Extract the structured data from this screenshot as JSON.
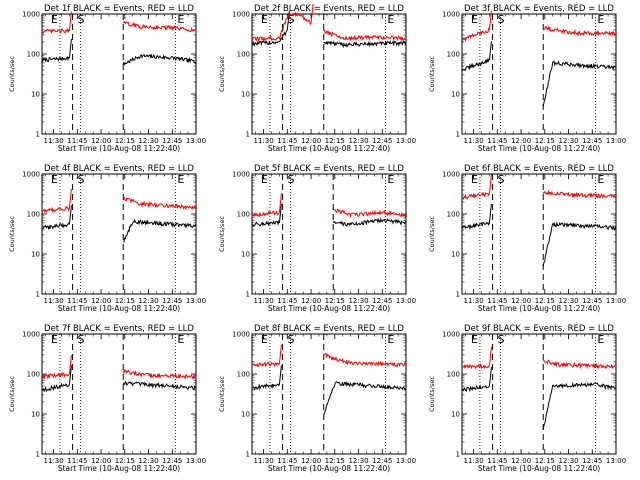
{
  "common": {
    "title_suffix": "BLACK = Events, RED = LLD",
    "xlabel": "Start Time (10-Aug-08 11:22:40)",
    "ylabel": "Counts/sec",
    "xticks": [
      "11:30",
      "11:45",
      "12:00",
      "12:15",
      "12:30",
      "12:45",
      "13:00"
    ],
    "yticks": [
      "1",
      "10",
      "100",
      "1000"
    ],
    "markers": [
      "E",
      "S",
      "E"
    ],
    "colors": {
      "events": "#000000",
      "lld": "#ff0000"
    }
  },
  "chart_data": [
    {
      "type": "line",
      "title": "Det 1f",
      "xlim": [
        "11:22:40",
        "13:00"
      ],
      "ylim": [
        1,
        1000
      ],
      "log_y": true,
      "dotted_lines": [
        "11:34",
        "11:47",
        "12:47"
      ],
      "dashed_lines": [
        "11:42",
        "12:14"
      ],
      "series": [
        {
          "key": "events",
          "pre": [
            {
              "t": "11:22:40",
              "v": 70
            },
            {
              "t": "11:40",
              "v": 80
            }
          ],
          "post": [
            {
              "t": "12:14",
              "v": 55
            },
            {
              "t": "12:25",
              "v": 90
            },
            {
              "t": "12:45",
              "v": 80
            },
            {
              "t": "13:00",
              "v": 65
            }
          ]
        },
        {
          "key": "lld",
          "pre": [
            {
              "t": "11:22:40",
              "v": 370
            },
            {
              "t": "11:40",
              "v": 380
            }
          ],
          "post": [
            {
              "t": "12:14",
              "v": 600
            },
            {
              "t": "12:25",
              "v": 480
            },
            {
              "t": "12:45",
              "v": 450
            },
            {
              "t": "13:00",
              "v": 390
            }
          ]
        }
      ]
    },
    {
      "type": "line",
      "title": "Det 2f",
      "xlim": [
        "11:22:40",
        "13:00"
      ],
      "ylim": [
        1,
        1000
      ],
      "log_y": true,
      "dotted_lines": [
        "11:34",
        "11:47",
        "12:47"
      ],
      "dashed_lines": [
        "11:42",
        "12:08"
      ],
      "series": [
        {
          "key": "events",
          "pre": [
            {
              "t": "11:22:40",
              "v": 180
            },
            {
              "t": "11:40",
              "v": 200
            },
            {
              "t": "11:45",
              "v": 400
            }
          ],
          "post": [
            {
              "t": "12:08",
              "v": 200
            },
            {
              "t": "12:20",
              "v": 170
            },
            {
              "t": "12:40",
              "v": 180
            },
            {
              "t": "13:00",
              "v": 190
            }
          ]
        },
        {
          "key": "lld",
          "pre": [
            {
              "t": "11:22:40",
              "v": 240
            },
            {
              "t": "11:40",
              "v": 250
            },
            {
              "t": "11:45",
              "v": 900
            },
            {
              "t": "11:52",
              "v": 1000
            },
            {
              "t": "12:00",
              "v": 600
            }
          ],
          "post": [
            {
              "t": "12:08",
              "v": 380
            },
            {
              "t": "12:20",
              "v": 250
            },
            {
              "t": "12:40",
              "v": 260
            },
            {
              "t": "13:00",
              "v": 250
            }
          ]
        }
      ]
    },
    {
      "type": "line",
      "title": "Det 3f",
      "xlim": [
        "11:22:40",
        "13:00"
      ],
      "ylim": [
        1,
        1000
      ],
      "log_y": true,
      "dotted_lines": [
        "11:34",
        "11:47",
        "12:47"
      ],
      "dashed_lines": [
        "11:42",
        "12:14"
      ],
      "series": [
        {
          "key": "events",
          "pre": [
            {
              "t": "11:22:40",
              "v": 40
            },
            {
              "t": "11:40",
              "v": 70
            }
          ],
          "post": [
            {
              "t": "12:14",
              "v": 5
            },
            {
              "t": "12:20",
              "v": 60
            },
            {
              "t": "12:45",
              "v": 50
            },
            {
              "t": "13:00",
              "v": 45
            }
          ]
        },
        {
          "key": "lld",
          "pre": [
            {
              "t": "11:22:40",
              "v": 230
            },
            {
              "t": "11:40",
              "v": 400
            }
          ],
          "post": [
            {
              "t": "12:14",
              "v": 450
            },
            {
              "t": "12:30",
              "v": 350
            },
            {
              "t": "13:00",
              "v": 320
            }
          ]
        }
      ]
    },
    {
      "type": "line",
      "title": "Det 4f",
      "xlim": [
        "11:22:40",
        "13:00"
      ],
      "ylim": [
        1,
        1000
      ],
      "log_y": true,
      "dotted_lines": [
        "11:34",
        "11:47",
        "12:47"
      ],
      "dashed_lines": [
        "11:42",
        "12:14"
      ],
      "series": [
        {
          "key": "events",
          "pre": [
            {
              "t": "11:22:40",
              "v": 45
            },
            {
              "t": "11:40",
              "v": 55
            }
          ],
          "post": [
            {
              "t": "12:14",
              "v": 20
            },
            {
              "t": "12:20",
              "v": 65
            },
            {
              "t": "12:45",
              "v": 55
            },
            {
              "t": "13:00",
              "v": 50
            }
          ]
        },
        {
          "key": "lld",
          "pre": [
            {
              "t": "11:22:40",
              "v": 120
            },
            {
              "t": "11:40",
              "v": 140
            }
          ],
          "post": [
            {
              "t": "12:14",
              "v": 250
            },
            {
              "t": "12:25",
              "v": 180
            },
            {
              "t": "12:45",
              "v": 160
            },
            {
              "t": "13:00",
              "v": 140
            }
          ]
        }
      ]
    },
    {
      "type": "line",
      "title": "Det 5f",
      "xlim": [
        "11:22:40",
        "13:00"
      ],
      "ylim": [
        1,
        1000
      ],
      "log_y": true,
      "dotted_lines": [
        "11:34",
        "11:47",
        "12:47"
      ],
      "dashed_lines": [
        "11:42",
        "12:14"
      ],
      "series": [
        {
          "key": "events",
          "pre": [
            {
              "t": "11:22:40",
              "v": 55
            },
            {
              "t": "11:40",
              "v": 60
            }
          ],
          "post": [
            {
              "t": "12:14",
              "v": 60
            },
            {
              "t": "12:25",
              "v": 55
            },
            {
              "t": "12:45",
              "v": 70
            },
            {
              "t": "13:00",
              "v": 60
            }
          ]
        },
        {
          "key": "lld",
          "pre": [
            {
              "t": "11:22:40",
              "v": 95
            },
            {
              "t": "11:40",
              "v": 110
            }
          ],
          "post": [
            {
              "t": "12:14",
              "v": 130
            },
            {
              "t": "12:25",
              "v": 95
            },
            {
              "t": "12:45",
              "v": 110
            },
            {
              "t": "13:00",
              "v": 90
            }
          ]
        }
      ]
    },
    {
      "type": "line",
      "title": "Det 6f",
      "xlim": [
        "11:22:40",
        "13:00"
      ],
      "ylim": [
        1,
        1000
      ],
      "log_y": true,
      "dotted_lines": [
        "11:34",
        "11:47",
        "12:47"
      ],
      "dashed_lines": [
        "11:42",
        "12:14"
      ],
      "series": [
        {
          "key": "events",
          "pre": [
            {
              "t": "11:22:40",
              "v": 45
            },
            {
              "t": "11:40",
              "v": 60
            }
          ],
          "post": [
            {
              "t": "12:14",
              "v": 5
            },
            {
              "t": "12:20",
              "v": 55
            },
            {
              "t": "12:45",
              "v": 50
            },
            {
              "t": "13:00",
              "v": 45
            }
          ]
        },
        {
          "key": "lld",
          "pre": [
            {
              "t": "11:22:40",
              "v": 260
            },
            {
              "t": "11:40",
              "v": 320
            }
          ],
          "post": [
            {
              "t": "12:14",
              "v": 350
            },
            {
              "t": "12:30",
              "v": 300
            },
            {
              "t": "13:00",
              "v": 280
            }
          ]
        }
      ]
    },
    {
      "type": "line",
      "title": "Det 7f",
      "xlim": [
        "11:22:40",
        "13:00"
      ],
      "ylim": [
        1,
        1000
      ],
      "log_y": true,
      "dotted_lines": [
        "11:34",
        "11:47",
        "12:47"
      ],
      "dashed_lines": [
        "11:42",
        "12:14"
      ],
      "series": [
        {
          "key": "events",
          "pre": [
            {
              "t": "11:22:40",
              "v": 40
            },
            {
              "t": "11:40",
              "v": 55
            }
          ],
          "post": [
            {
              "t": "12:14",
              "v": 60
            },
            {
              "t": "12:25",
              "v": 55
            },
            {
              "t": "12:45",
              "v": 50
            },
            {
              "t": "13:00",
              "v": 45
            }
          ]
        },
        {
          "key": "lld",
          "pre": [
            {
              "t": "11:22:40",
              "v": 85
            },
            {
              "t": "11:40",
              "v": 100
            }
          ],
          "post": [
            {
              "t": "12:14",
              "v": 120
            },
            {
              "t": "12:25",
              "v": 95
            },
            {
              "t": "12:45",
              "v": 90
            },
            {
              "t": "13:00",
              "v": 85
            }
          ]
        }
      ]
    },
    {
      "type": "line",
      "title": "Det 8f",
      "xlim": [
        "11:22:40",
        "13:00"
      ],
      "ylim": [
        1,
        1000
      ],
      "log_y": true,
      "dotted_lines": [
        "11:34",
        "11:47",
        "12:47"
      ],
      "dashed_lines": [
        "11:42",
        "12:08"
      ],
      "series": [
        {
          "key": "events",
          "pre": [
            {
              "t": "11:22:40",
              "v": 45
            },
            {
              "t": "11:40",
              "v": 55
            }
          ],
          "post": [
            {
              "t": "12:08",
              "v": 10
            },
            {
              "t": "12:15",
              "v": 60
            },
            {
              "t": "12:40",
              "v": 50
            },
            {
              "t": "13:00",
              "v": 45
            }
          ]
        },
        {
          "key": "lld",
          "pre": [
            {
              "t": "11:22:40",
              "v": 170
            },
            {
              "t": "11:40",
              "v": 180
            }
          ],
          "post": [
            {
              "t": "12:08",
              "v": 300
            },
            {
              "t": "12:25",
              "v": 190
            },
            {
              "t": "12:45",
              "v": 180
            },
            {
              "t": "13:00",
              "v": 170
            }
          ]
        }
      ]
    },
    {
      "type": "line",
      "title": "Det 9f",
      "xlim": [
        "11:22:40",
        "13:00"
      ],
      "ylim": [
        1,
        1000
      ],
      "log_y": true,
      "dotted_lines": [
        "11:34",
        "11:47",
        "12:47"
      ],
      "dashed_lines": [
        "11:42",
        "12:14"
      ],
      "series": [
        {
          "key": "events",
          "pre": [
            {
              "t": "11:22:40",
              "v": 40
            },
            {
              "t": "11:40",
              "v": 50
            }
          ],
          "post": [
            {
              "t": "12:14",
              "v": 4
            },
            {
              "t": "12:20",
              "v": 50
            },
            {
              "t": "12:45",
              "v": 55
            },
            {
              "t": "13:00",
              "v": 45
            }
          ]
        },
        {
          "key": "lld",
          "pre": [
            {
              "t": "11:22:40",
              "v": 150
            },
            {
              "t": "11:40",
              "v": 160
            }
          ],
          "post": [
            {
              "t": "12:14",
              "v": 220
            },
            {
              "t": "12:25",
              "v": 170
            },
            {
              "t": "12:45",
              "v": 160
            },
            {
              "t": "13:00",
              "v": 150
            }
          ]
        }
      ]
    }
  ]
}
